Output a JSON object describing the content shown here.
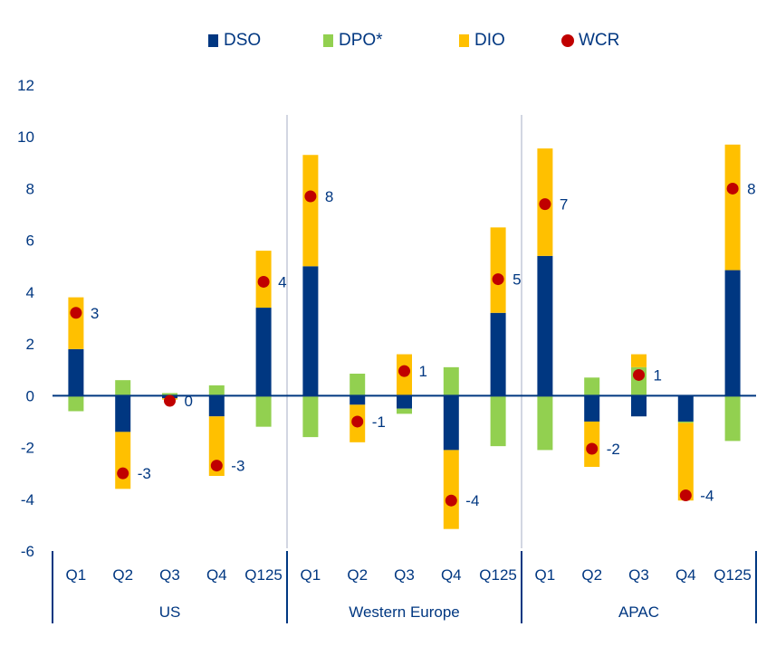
{
  "chart_data": {
    "type": "bar",
    "subtype": "stacked-bar-with-dots",
    "title": "",
    "xlabel": "",
    "ylabel": "",
    "ylim": [
      -6,
      12
    ],
    "yticks": [
      12,
      10,
      8,
      6,
      4,
      2,
      0,
      -2,
      -4,
      -6
    ],
    "ytick_labels": [
      "12",
      "10",
      "8",
      "6",
      "4",
      "2",
      "0",
      "-2",
      "-4",
      "-6"
    ],
    "grid": false,
    "legend_position": "top-center",
    "groups": [
      {
        "name": "US",
        "categories": [
          "Q1",
          "Q2",
          "Q3",
          "Q4",
          "Q125"
        ]
      },
      {
        "name": "Western Europe",
        "categories": [
          "Q1",
          "Q2",
          "Q3",
          "Q4",
          "Q125"
        ]
      },
      {
        "name": "APAC",
        "categories": [
          "Q1",
          "Q2",
          "Q3",
          "Q4",
          "Q125"
        ]
      }
    ],
    "series": [
      {
        "name": "DSO",
        "kind": "bar",
        "color": "#003781",
        "values": [
          1.8,
          -1.4,
          -0.1,
          -0.8,
          3.4,
          5.0,
          -0.35,
          -0.5,
          -2.1,
          3.2,
          5.4,
          -1.0,
          -0.8,
          -1.0,
          4.85
        ]
      },
      {
        "name": "DPO*",
        "kind": "bar",
        "color": "#92D050",
        "values": [
          -0.6,
          0.6,
          0.1,
          0.4,
          -1.2,
          -1.6,
          0.85,
          -0.2,
          1.1,
          -1.95,
          -2.1,
          0.7,
          1.1,
          -0.05,
          -1.75
        ]
      },
      {
        "name": "DIO",
        "kind": "bar",
        "color": "#FFC000",
        "values": [
          2.0,
          -2.2,
          -0.05,
          -2.3,
          2.2,
          4.3,
          -1.45,
          1.6,
          -3.05,
          3.3,
          4.15,
          -1.75,
          0.5,
          -3.0,
          4.85
        ]
      },
      {
        "name": "WCR",
        "kind": "dot",
        "color": "#C00000",
        "values": [
          3.2,
          -3.0,
          -0.2,
          -2.7,
          4.4,
          7.7,
          -1.0,
          0.95,
          -4.05,
          4.5,
          7.4,
          -2.05,
          0.8,
          -3.85,
          8.0
        ],
        "labels": [
          "3",
          "-3",
          "0",
          "-3",
          "4",
          "8",
          "-1",
          "1",
          "-4",
          "5",
          "7",
          "-2",
          "1",
          "-4",
          "8"
        ]
      }
    ]
  },
  "legend": {
    "items": [
      {
        "label": "DSO",
        "color": "#003781",
        "shape": "square"
      },
      {
        "label": "DPO*",
        "color": "#92D050",
        "shape": "square"
      },
      {
        "label": "DIO",
        "color": "#FFC000",
        "shape": "square"
      },
      {
        "label": "WCR",
        "color": "#C00000",
        "shape": "circle"
      }
    ]
  },
  "colors": {
    "axis": "#003781",
    "text": "#003781",
    "separator": "#A6AEC4"
  }
}
